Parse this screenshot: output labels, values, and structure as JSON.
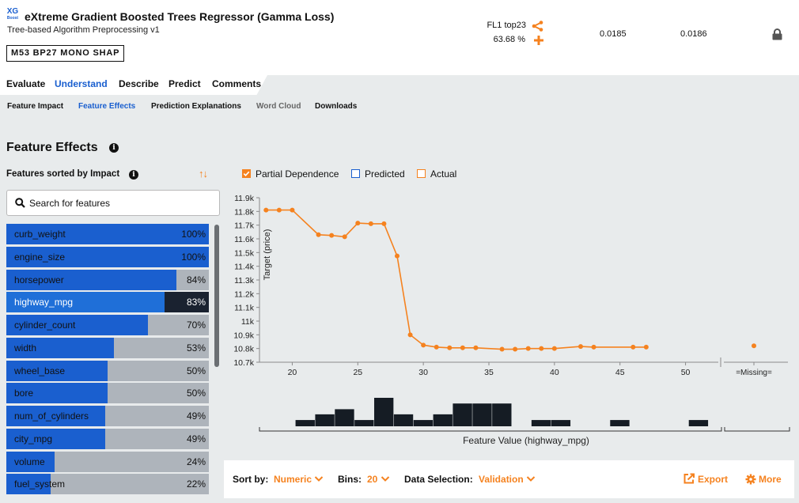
{
  "header": {
    "logo_text": "XG",
    "logo_sub": "Boost",
    "model_title": "eXtreme Gradient Boosted Trees Regressor (Gamma Loss)",
    "model_subtitle": "Tree-based Algorithm Preprocessing v1",
    "badge": "M53  BP27  MONO  SHAP",
    "feature_list_name": "FL1 top23",
    "sample_pct": "63.68 %",
    "score_validation": "0.0185",
    "score_cross_validation": "0.0186",
    "accent_color": "#f5821f"
  },
  "main_tabs": [
    {
      "label": "Evaluate",
      "active": false
    },
    {
      "label": "Understand",
      "active": true
    },
    {
      "label": "Describe",
      "active": false
    },
    {
      "label": "Predict",
      "active": false
    },
    {
      "label": "Comments",
      "active": false
    }
  ],
  "sub_tabs": [
    {
      "label": "Feature Impact",
      "state": "normal"
    },
    {
      "label": "Feature Effects",
      "state": "active"
    },
    {
      "label": "Prediction Explanations",
      "state": "normal"
    },
    {
      "label": "Word Cloud",
      "state": "dim"
    },
    {
      "label": "Downloads",
      "state": "normal"
    }
  ],
  "panel": {
    "title": "Feature Effects",
    "sorted_label": "Features sorted by Impact",
    "search_placeholder": "Search for features"
  },
  "features": [
    {
      "name": "curb_weight",
      "pct": "100%",
      "value": 100
    },
    {
      "name": "engine_size",
      "pct": "100%",
      "value": 100
    },
    {
      "name": "horsepower",
      "pct": "84%",
      "value": 84
    },
    {
      "name": "highway_mpg",
      "pct": "83%",
      "value": 83,
      "selected": true
    },
    {
      "name": "cylinder_count",
      "pct": "70%",
      "value": 70
    },
    {
      "name": "width",
      "pct": "53%",
      "value": 53
    },
    {
      "name": "wheel_base",
      "pct": "50%",
      "value": 50
    },
    {
      "name": "bore",
      "pct": "50%",
      "value": 50
    },
    {
      "name": "num_of_cylinders",
      "pct": "49%",
      "value": 49
    },
    {
      "name": "city_mpg",
      "pct": "49%",
      "value": 49
    },
    {
      "name": "volume",
      "pct": "24%",
      "value": 24
    },
    {
      "name": "fuel_system",
      "pct": "22%",
      "value": 22
    }
  ],
  "legend": {
    "partial_dependence": "Partial Dependence",
    "predicted": "Predicted",
    "actual": "Actual"
  },
  "chart_data": {
    "type": "line",
    "ylabel": "Target (price)",
    "xlabel": "Feature Value (highway_mpg)",
    "y_ticks": [
      "11.9k",
      "11.8k",
      "11.7k",
      "11.6k",
      "11.5k",
      "11.4k",
      "11.3k",
      "11.2k",
      "11.1k",
      "11k",
      "10.9k",
      "10.8k",
      "10.7k"
    ],
    "y_tick_values": [
      11900,
      11800,
      11700,
      11600,
      11500,
      11400,
      11300,
      11200,
      11100,
      11000,
      10900,
      10800,
      10700
    ],
    "x_ticks": [
      "20",
      "25",
      "30",
      "35",
      "40",
      "45",
      "50"
    ],
    "x_tick_values": [
      20,
      25,
      30,
      35,
      40,
      45,
      50
    ],
    "missing_label": "=Missing=",
    "ylim": [
      10700,
      11900
    ],
    "xlim": [
      17.5,
      52.5
    ],
    "series": [
      {
        "name": "Partial Dependence",
        "color": "#f5821f",
        "points": [
          [
            18,
            11810
          ],
          [
            19,
            11810
          ],
          [
            20,
            11810
          ],
          [
            22,
            11630
          ],
          [
            23,
            11625
          ],
          [
            24,
            11615
          ],
          [
            25,
            11715
          ],
          [
            26,
            11710
          ],
          [
            27,
            11710
          ],
          [
            28,
            11475
          ],
          [
            29,
            10900
          ],
          [
            30,
            10825
          ],
          [
            31,
            10810
          ],
          [
            32,
            10805
          ],
          [
            33,
            10805
          ],
          [
            34,
            10805
          ],
          [
            36,
            10795
          ],
          [
            37,
            10795
          ],
          [
            38,
            10800
          ],
          [
            39,
            10800
          ],
          [
            40,
            10800
          ],
          [
            42,
            10815
          ],
          [
            43,
            10810
          ],
          [
            46,
            10810
          ],
          [
            47,
            10810
          ]
        ],
        "missing_value": 10820
      }
    ],
    "histogram": {
      "color": "#151c24",
      "bins": [
        [
          21,
          0.22
        ],
        [
          22.5,
          0.42
        ],
        [
          24,
          0.6
        ],
        [
          25.5,
          0.22
        ],
        [
          27,
          1.0
        ],
        [
          28.5,
          0.42
        ],
        [
          30,
          0.22
        ],
        [
          31.5,
          0.42
        ],
        [
          33,
          0.8
        ],
        [
          34.5,
          0.8
        ],
        [
          36,
          0.8
        ],
        [
          39,
          0.22
        ],
        [
          40.5,
          0.22
        ],
        [
          45,
          0.22
        ],
        [
          51,
          0.22
        ]
      ]
    }
  },
  "bottom": {
    "sort_by_label": "Sort by:",
    "sort_by_value": "Numeric",
    "bins_label": "Bins:",
    "bins_value": "20",
    "data_selection_label": "Data Selection:",
    "data_selection_value": "Validation",
    "export_label": "Export",
    "more_label": "More"
  }
}
